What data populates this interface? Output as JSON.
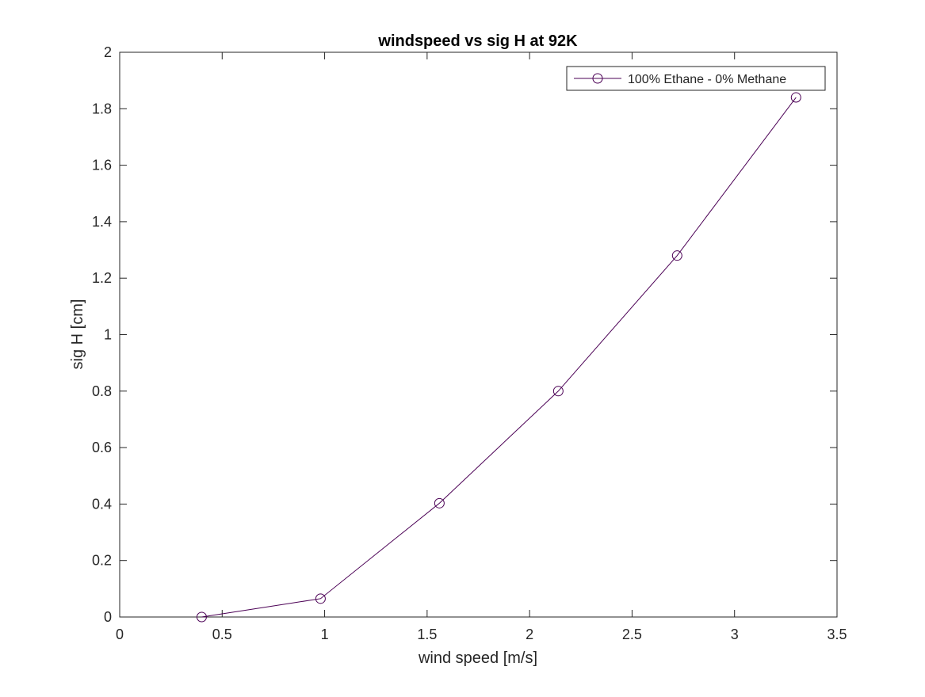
{
  "chart_data": {
    "type": "line",
    "title": "windspeed vs sig H at 92K",
    "xlabel": "wind speed [m/s]",
    "ylabel": "sig H [cm]",
    "xlim": [
      0,
      3.5
    ],
    "ylim": [
      0,
      2
    ],
    "xticks": [
      0,
      0.5,
      1,
      1.5,
      2,
      2.5,
      3,
      3.5
    ],
    "xtick_labels": [
      "0",
      "0.5",
      "1",
      "1.5",
      "2",
      "2.5",
      "3",
      "3.5"
    ],
    "yticks": [
      0,
      0.2,
      0.4,
      0.6,
      0.8,
      1,
      1.2,
      1.4,
      1.6,
      1.8,
      2
    ],
    "ytick_labels": [
      "0",
      "0.2",
      "0.4",
      "0.6",
      "0.8",
      "1",
      "1.2",
      "1.4",
      "1.6",
      "1.8",
      "2"
    ],
    "grid": false,
    "legend_position": "top-right",
    "series": [
      {
        "name": "100% Ethane - 0% Methane",
        "color": "#4B0055",
        "marker": "circle-open",
        "x": [
          0.4,
          0.98,
          1.56,
          2.14,
          2.72,
          3.3
        ],
        "y": [
          0.0,
          0.065,
          0.403,
          0.8,
          1.28,
          1.84
        ]
      }
    ]
  }
}
